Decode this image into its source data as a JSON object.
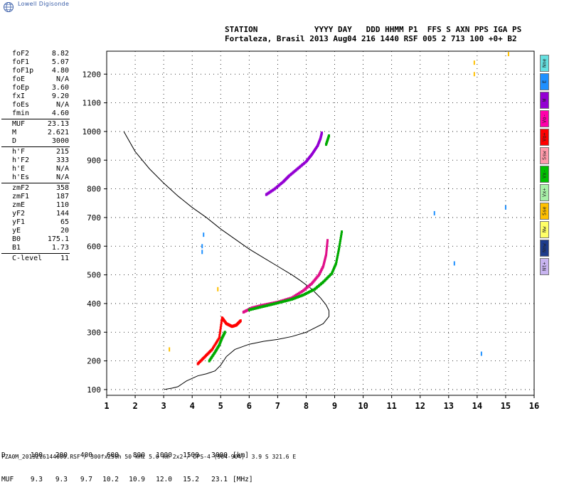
{
  "logo_text": "Lowell Digisonde",
  "header": {
    "line1": "STATION            YYYY DAY   DDD HHMM P1  FFS S AXN PPS IGA PS",
    "line2": "Fortaleza, Brasil 2013 Aug04 216 1440 RSF 005 2 713 100 +0+ B2"
  },
  "params": [
    {
      "label": "foF2",
      "value": "8.82"
    },
    {
      "label": "foF1",
      "value": "5.07"
    },
    {
      "label": "foF1p",
      "value": "4.80"
    },
    {
      "label": "foE",
      "value": "N/A"
    },
    {
      "label": "foEp",
      "value": "3.60"
    },
    {
      "label": "fxI",
      "value": "9.20"
    },
    {
      "label": "foEs",
      "value": "N/A"
    },
    {
      "label": "fmin",
      "value": "4.60"
    },
    {
      "sep": true
    },
    {
      "label": "MUF",
      "value": "23.13"
    },
    {
      "label": "M",
      "value": "2.621"
    },
    {
      "label": "D",
      "value": "3000"
    },
    {
      "sep": true
    },
    {
      "label": "h'F",
      "value": "215"
    },
    {
      "label": "h'F2",
      "value": "333"
    },
    {
      "label": "h'E",
      "value": "N/A"
    },
    {
      "label": "h'Es",
      "value": "N/A"
    },
    {
      "sep": true
    },
    {
      "label": "zmF2",
      "value": "358"
    },
    {
      "label": "zmF1",
      "value": "187"
    },
    {
      "label": "zmE",
      "value": "110"
    },
    {
      "label": "yF2",
      "value": "144"
    },
    {
      "label": "yF1",
      "value": "65"
    },
    {
      "label": "yE",
      "value": "20"
    },
    {
      "label": "B0",
      "value": "175.1"
    },
    {
      "label": "B1",
      "value": "1.73"
    },
    {
      "sep": true
    },
    {
      "label": "C-level",
      "value": "11"
    }
  ],
  "legend": [
    {
      "label": "Nne",
      "color": "#66e0e0"
    },
    {
      "label": "E",
      "color": "#1e90ff"
    },
    {
      "label": "W",
      "color": "#9400d3"
    },
    {
      "label": "Vo-",
      "color": "#ff00aa"
    },
    {
      "label": "Vo+",
      "color": "#ff0000"
    },
    {
      "label": "Ssw",
      "color": "#ff9aaa"
    },
    {
      "label": "Vx-",
      "color": "#00c000"
    },
    {
      "label": "Vx+",
      "color": "#a8f0a8"
    },
    {
      "label": "Sse",
      "color": "#ffc000"
    },
    {
      "label": "Nw",
      "color": "#ffff66"
    },
    {
      "label": "Nnw",
      "color": "#1e3c8c"
    },
    {
      "label": "Nt+",
      "color": "#c8b4f0"
    }
  ],
  "muf_table": {
    "row1_label": "D",
    "row1_values": [
      "100",
      "200",
      "400",
      "600",
      "800",
      "1000",
      "1500",
      "3000",
      "[km]"
    ],
    "row2_label": "MUF",
    "row2_values": [
      "9.3",
      "9.3",
      "9.7",
      "10.2",
      "10.9",
      "12.0",
      "15.2",
      "23.1",
      "[MHz]"
    ]
  },
  "footer": "FZA0M_2013216144000.RSF / 300fx256h 50 kHz 5.0 km 2x2 / DPS-4 (904-904)  3.9 S 321.6 E",
  "chart_data": {
    "type": "scatter",
    "xlim": [
      1,
      16
    ],
    "ylim": [
      80,
      1280
    ],
    "x_ticks": [
      1,
      2,
      3,
      4,
      5,
      6,
      7,
      8,
      9,
      10,
      11,
      12,
      13,
      14,
      15,
      16
    ],
    "y_ticks": [
      100,
      200,
      300,
      400,
      500,
      600,
      700,
      800,
      900,
      1000,
      1100,
      1200
    ],
    "grid": true,
    "series": [
      {
        "color": "#ff0000",
        "x": [
          4.2,
          4.45,
          4.7,
          4.95,
          5.05,
          5.2,
          5.4,
          5.55,
          5.7
        ],
        "y": [
          190,
          215,
          240,
          280,
          350,
          330,
          320,
          325,
          340
        ]
      },
      {
        "color": "#e0108a",
        "x": [
          5.8,
          6.1,
          6.5,
          7.0,
          7.5,
          7.9,
          8.2,
          8.45,
          8.6,
          8.7,
          8.75
        ],
        "y": [
          370,
          385,
          395,
          405,
          420,
          445,
          470,
          500,
          530,
          570,
          620
        ]
      },
      {
        "color": "#00aa00",
        "x": [
          6.0,
          6.5,
          7.0,
          7.5,
          7.9,
          8.3,
          8.6,
          8.9,
          9.05,
          9.15,
          9.25
        ],
        "y": [
          378,
          390,
          402,
          415,
          430,
          450,
          475,
          505,
          540,
          590,
          650
        ]
      },
      {
        "color": "#00aa00",
        "x": [
          4.6,
          4.8,
          4.95,
          5.05,
          5.15
        ],
        "y": [
          200,
          230,
          255,
          280,
          300
        ]
      },
      {
        "color": "#9400d3",
        "x": [
          6.6,
          6.9,
          7.2,
          7.4,
          7.7,
          8.0,
          8.2,
          8.4,
          8.5,
          8.55
        ],
        "y": [
          780,
          800,
          825,
          845,
          870,
          895,
          920,
          950,
          975,
          995
        ]
      },
      {
        "color": "#00aa00",
        "x": [
          8.7,
          8.8
        ],
        "y": [
          955,
          985
        ]
      },
      {
        "color": "#ffc000",
        "x": [
          13.9,
          13.9,
          15.1,
          4.9,
          3.2
        ],
        "y": [
          1200,
          1240,
          1270,
          450,
          240
        ]
      },
      {
        "color": "#1e90ff",
        "x": [
          4.35,
          4.35,
          4.4,
          13.2,
          14.15,
          15.0,
          12.5
        ],
        "y": [
          580,
          600,
          640,
          540,
          225,
          735,
          715
        ]
      }
    ],
    "profile": {
      "color": "#000000",
      "x": [
        1.6,
        2.0,
        2.5,
        3.0,
        3.5,
        4.0,
        4.5,
        5.0,
        5.5,
        6.0,
        6.5,
        7.0,
        7.5,
        7.8,
        8.2,
        8.5,
        8.7,
        8.8,
        8.8,
        8.6,
        8.0,
        7.5,
        7.0,
        6.5,
        6.0,
        5.5,
        5.2,
        5.0,
        4.8,
        4.5,
        4.2,
        3.8,
        3.5,
        3.3,
        3.0
      ],
      "y": [
        1000,
        930,
        870,
        820,
        775,
        735,
        700,
        660,
        625,
        590,
        560,
        530,
        500,
        480,
        450,
        420,
        395,
        375,
        355,
        330,
        300,
        285,
        275,
        268,
        258,
        240,
        215,
        185,
        165,
        155,
        148,
        130,
        110,
        105,
        100
      ]
    }
  }
}
